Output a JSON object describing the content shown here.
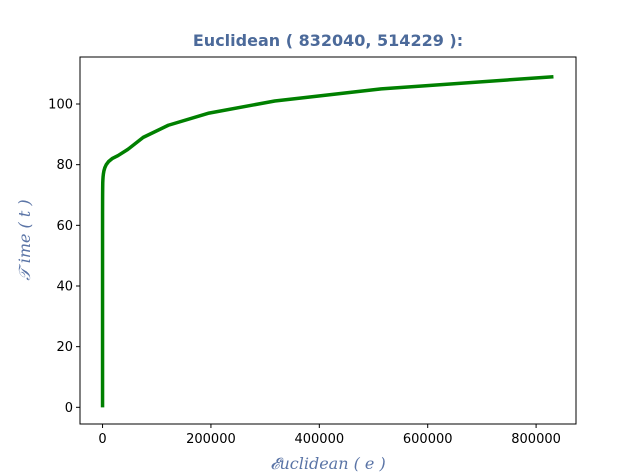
{
  "colors": {
    "title": "#4c6a9a",
    "axis_label": "#5a74a6",
    "line": "#008000",
    "axis": "#000000",
    "background": "#ffffff"
  },
  "chart_data": {
    "type": "line",
    "title": "Euclidean ( 832040, 514229 ):",
    "xlabel": "𝓔uclidean ( e )",
    "ylabel": "𝒯 ime ( t )",
    "xlim": [
      -41602,
      873642
    ],
    "ylim": [
      -5.5,
      115.5
    ],
    "grid": false,
    "legend": "none",
    "xticks": [
      0,
      200000,
      400000,
      600000,
      800000
    ],
    "xtick_labels": [
      "0",
      "200000",
      "400000",
      "600000",
      "800000"
    ],
    "yticks": [
      0,
      20,
      40,
      60,
      80,
      100
    ],
    "ytick_labels": [
      "0",
      "20",
      "40",
      "60",
      "80",
      "100"
    ],
    "series": [
      {
        "x": [
          1,
          2,
          3,
          5,
          8,
          13,
          21,
          34,
          55,
          89,
          144,
          233,
          377,
          610,
          987,
          1597,
          2584,
          4181,
          6765,
          10946,
          17711,
          28657,
          46368,
          75025,
          121393,
          196418,
          317811,
          514229,
          832040
        ],
        "y": [
          0,
          25,
          40,
          49,
          54,
          58,
          61,
          64,
          66,
          68,
          70,
          72,
          74,
          75,
          76,
          77,
          78,
          79,
          80,
          81,
          82,
          83,
          85,
          89,
          93,
          97,
          101,
          105,
          109
        ]
      }
    ]
  }
}
